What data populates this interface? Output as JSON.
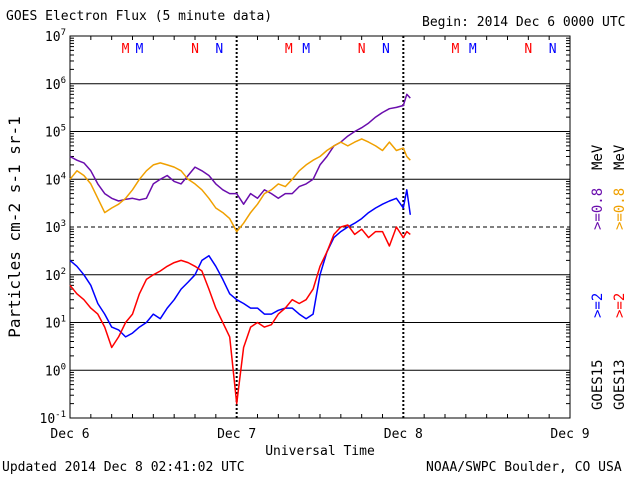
{
  "header": {
    "title": "GOES Electron Flux (5 minute data)",
    "begin": "Begin: 2014 Dec 6 0000 UTC"
  },
  "footer": {
    "updated": "Updated 2014 Dec  8 02:41:02 UTC",
    "credit": "NOAA/SWPC Boulder, CO USA"
  },
  "colors": {
    "goes15_08": "#6a0dad",
    "goes13_08": "#f0a000",
    "goes15_2": "#0000ff",
    "goes13_2": "#ff0000"
  },
  "chart_data": {
    "type": "line",
    "title": "GOES Electron Flux (5 minute data)",
    "xlabel": "Universal Time",
    "ylabel": "Particles cm-2 s-1 sr-1",
    "yscale": "log",
    "ylim": [
      0.1,
      10000000
    ],
    "xlim": [
      0,
      72
    ],
    "x_unit": "hours since 2014 Dec 6 0000 UTC",
    "y_ticks": [
      {
        "value": 0.1,
        "base": "10",
        "exp": "-1"
      },
      {
        "value": 1,
        "base": "10",
        "exp": "0"
      },
      {
        "value": 10,
        "base": "10",
        "exp": "1"
      },
      {
        "value": 100,
        "base": "10",
        "exp": "2"
      },
      {
        "value": 1000,
        "base": "10",
        "exp": "3"
      },
      {
        "value": 10000,
        "base": "10",
        "exp": "4"
      },
      {
        "value": 100000,
        "base": "10",
        "exp": "5"
      },
      {
        "value": 1000000,
        "base": "10",
        "exp": "6"
      },
      {
        "value": 10000000,
        "base": "10",
        "exp": "7"
      }
    ],
    "x_ticks": [
      {
        "hour": 0,
        "label": "Dec 6"
      },
      {
        "hour": 24,
        "label": "Dec 7"
      },
      {
        "hour": 48,
        "label": "Dec 8"
      },
      {
        "hour": 72,
        "label": "Dec 9"
      }
    ],
    "threshold": 1000,
    "markers": [
      {
        "hour": 8,
        "label": "M",
        "color": "#ff0000"
      },
      {
        "hour": 10,
        "label": "M",
        "color": "#0000ff"
      },
      {
        "hour": 18,
        "label": "N",
        "color": "#ff0000"
      },
      {
        "hour": 21.5,
        "label": "N",
        "color": "#0000ff"
      },
      {
        "hour": 31.5,
        "label": "M",
        "color": "#ff0000"
      },
      {
        "hour": 34,
        "label": "M",
        "color": "#0000ff"
      },
      {
        "hour": 42,
        "label": "N",
        "color": "#ff0000"
      },
      {
        "hour": 45.5,
        "label": "N",
        "color": "#0000ff"
      },
      {
        "hour": 55.5,
        "label": "M",
        "color": "#ff0000"
      },
      {
        "hour": 58,
        "label": "M",
        "color": "#0000ff"
      },
      {
        "hour": 66,
        "label": "N",
        "color": "#ff0000"
      },
      {
        "hour": 69.5,
        "label": "N",
        "color": "#0000ff"
      }
    ],
    "legend": [
      {
        "satellite": "GOES15",
        "energy": ">=0.8",
        "unit": "MeV",
        "color": "#6a0dad"
      },
      {
        "satellite": "GOES13",
        "energy": ">=0.8",
        "unit": "MeV",
        "color": "#f0a000"
      },
      {
        "satellite": "GOES15",
        "energy": ">=2",
        "unit": "",
        "color": "#0000ff"
      },
      {
        "satellite": "GOES13",
        "energy": ">=2",
        "unit": "",
        "color": "#ff0000"
      }
    ],
    "legend_labels": {
      "energy_08": ">=0.8",
      "energy_2": ">=2",
      "unit": "MeV",
      "sat15": "GOES15",
      "sat13": "GOES13"
    },
    "series": [
      {
        "name": "GOES15 >=0.8 MeV",
        "color": "#6a0dad",
        "x": [
          0,
          1,
          2,
          3,
          4,
          5,
          6,
          7,
          8,
          9,
          10,
          11,
          12,
          13,
          14,
          15,
          16,
          17,
          18,
          19,
          20,
          21,
          22,
          23,
          24,
          25,
          26,
          27,
          28,
          29,
          30,
          31,
          32,
          33,
          34,
          35,
          36,
          37,
          38,
          39,
          40,
          41,
          42,
          43,
          44,
          45,
          46,
          47,
          48,
          48.5,
          49
        ],
        "values": [
          30000,
          25000,
          22000,
          15000,
          8000,
          5000,
          4000,
          3500,
          3800,
          4000,
          3700,
          4000,
          8000,
          10000,
          12000,
          9000,
          8000,
          12000,
          18000,
          15000,
          12000,
          8000,
          6000,
          5000,
          5000,
          3000,
          5000,
          4000,
          6000,
          5000,
          4000,
          5000,
          5000,
          7000,
          8000,
          10000,
          20000,
          30000,
          50000,
          60000,
          80000,
          100000,
          120000,
          150000,
          200000,
          250000,
          300000,
          320000,
          350000,
          600000,
          500000
        ]
      },
      {
        "name": "GOES13 >=0.8 MeV",
        "color": "#f0a000",
        "x": [
          0,
          1,
          2,
          3,
          4,
          5,
          6,
          7,
          8,
          9,
          10,
          11,
          12,
          13,
          14,
          15,
          16,
          17,
          18,
          19,
          20,
          21,
          22,
          23,
          24,
          25,
          26,
          27,
          28,
          29,
          30,
          31,
          32,
          33,
          34,
          35,
          36,
          37,
          38,
          39,
          40,
          41,
          42,
          43,
          44,
          45,
          46,
          47,
          48,
          48.5,
          49
        ],
        "values": [
          10000,
          15000,
          12000,
          8000,
          4000,
          2000,
          2500,
          3000,
          4000,
          6000,
          10000,
          15000,
          20000,
          22000,
          20000,
          18000,
          15000,
          10000,
          8000,
          6000,
          4000,
          2500,
          2000,
          1500,
          800,
          1200,
          2000,
          3000,
          5000,
          6000,
          8000,
          7000,
          10000,
          15000,
          20000,
          25000,
          30000,
          40000,
          50000,
          60000,
          50000,
          60000,
          70000,
          60000,
          50000,
          40000,
          60000,
          40000,
          45000,
          30000,
          25000
        ]
      },
      {
        "name": "GOES15 >=2 MeV",
        "color": "#0000ff",
        "x": [
          0,
          1,
          2,
          3,
          4,
          5,
          6,
          7,
          8,
          9,
          10,
          11,
          12,
          13,
          14,
          15,
          16,
          17,
          18,
          19,
          20,
          21,
          22,
          23,
          24,
          25,
          26,
          27,
          28,
          29,
          30,
          31,
          32,
          33,
          34,
          35,
          36,
          37,
          38,
          39,
          40,
          41,
          42,
          43,
          44,
          45,
          46,
          47,
          48,
          48.5,
          49
        ],
        "values": [
          200,
          150,
          100,
          60,
          25,
          15,
          8,
          7,
          5,
          6,
          8,
          10,
          15,
          12,
          20,
          30,
          50,
          70,
          100,
          200,
          250,
          150,
          80,
          40,
          30,
          25,
          20,
          20,
          15,
          15,
          18,
          20,
          20,
          15,
          12,
          15,
          100,
          300,
          600,
          800,
          1000,
          1200,
          1500,
          2000,
          2500,
          3000,
          3500,
          4000,
          2500,
          6000,
          1800
        ]
      },
      {
        "name": "GOES13 >=2 MeV",
        "color": "#ff0000",
        "x": [
          0,
          1,
          2,
          3,
          4,
          5,
          6,
          7,
          8,
          9,
          10,
          11,
          12,
          13,
          14,
          15,
          16,
          17,
          18,
          19,
          20,
          21,
          22,
          23,
          24,
          25,
          26,
          27,
          28,
          29,
          30,
          31,
          32,
          33,
          34,
          35,
          36,
          37,
          38,
          39,
          40,
          41,
          42,
          43,
          44,
          45,
          46,
          47,
          48,
          48.5,
          49
        ],
        "values": [
          60,
          40,
          30,
          20,
          15,
          8,
          3,
          5,
          10,
          15,
          40,
          80,
          100,
          120,
          150,
          180,
          200,
          180,
          150,
          120,
          50,
          20,
          10,
          5,
          0.2,
          3,
          8,
          10,
          8,
          9,
          15,
          20,
          30,
          25,
          30,
          50,
          150,
          300,
          700,
          1000,
          1100,
          700,
          900,
          600,
          800,
          800,
          400,
          1000,
          600,
          800,
          700
        ]
      }
    ]
  }
}
